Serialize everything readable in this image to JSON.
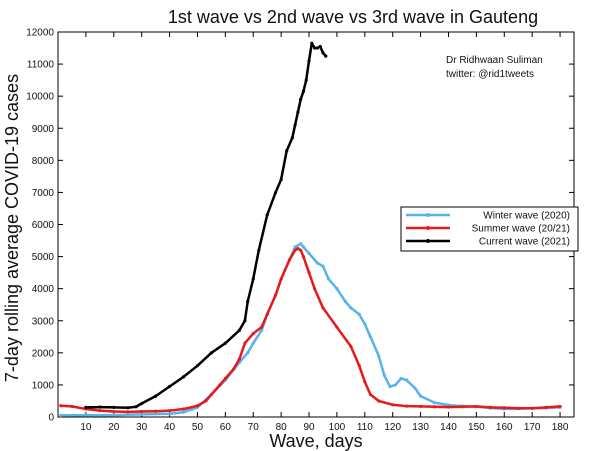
{
  "chart_data": {
    "type": "line",
    "title": "1st wave vs 2nd wave vs 3rd wave in Gauteng",
    "xlabel": "Wave, days",
    "ylabel": "7-day rolling average COVID-19 cases",
    "xlim": [
      0,
      185
    ],
    "ylim": [
      0,
      12000
    ],
    "xticks": [
      10,
      20,
      30,
      40,
      50,
      60,
      70,
      80,
      90,
      100,
      110,
      120,
      130,
      140,
      150,
      160,
      170,
      180
    ],
    "yticks": [
      0,
      1000,
      2000,
      3000,
      4000,
      5000,
      6000,
      7000,
      8000,
      9000,
      10000,
      11000,
      12000
    ],
    "annotation": {
      "line1": "Dr Ridhwaan Suliman",
      "line2": "twitter: @rid1tweets"
    },
    "legend_position": "right",
    "series": [
      {
        "name": "Winter wave (2020)",
        "color": "#56b4e9",
        "x": [
          1,
          10,
          20,
          30,
          40,
          45,
          50,
          55,
          60,
          65,
          68,
          70,
          73,
          75,
          78,
          80,
          83,
          85,
          87,
          88,
          90,
          93,
          95,
          97,
          100,
          103,
          105,
          108,
          110,
          112,
          115,
          117,
          119,
          121,
          123,
          125,
          128,
          130,
          135,
          140,
          145,
          150,
          155,
          160,
          165,
          170,
          175,
          180
        ],
        "y": [
          50,
          60,
          60,
          80,
          100,
          150,
          300,
          700,
          1150,
          1700,
          2000,
          2300,
          2700,
          3200,
          3800,
          4300,
          4900,
          5300,
          5400,
          5300,
          5100,
          4800,
          4700,
          4300,
          4000,
          3600,
          3400,
          3200,
          2900,
          2500,
          1900,
          1300,
          950,
          1000,
          1200,
          1150,
          900,
          650,
          450,
          370,
          340,
          320,
          280,
          250,
          260,
          270,
          280,
          300
        ]
      },
      {
        "name": "Summer wave (20/21)",
        "color": "#e8191b",
        "x": [
          1,
          5,
          10,
          15,
          20,
          25,
          30,
          35,
          40,
          45,
          50,
          53,
          55,
          58,
          60,
          63,
          65,
          67,
          70,
          73,
          75,
          78,
          80,
          83,
          85,
          86,
          87,
          88,
          90,
          92,
          95,
          100,
          105,
          108,
          110,
          112,
          115,
          120,
          125,
          130,
          135,
          140,
          145,
          150,
          155,
          160,
          165,
          170,
          175,
          180
        ],
        "y": [
          350,
          330,
          250,
          200,
          170,
          160,
          170,
          180,
          200,
          250,
          350,
          500,
          700,
          1000,
          1200,
          1500,
          1800,
          2300,
          2600,
          2800,
          3200,
          3800,
          4300,
          4900,
          5200,
          5250,
          5200,
          5000,
          4500,
          4000,
          3400,
          2800,
          2200,
          1600,
          1100,
          700,
          500,
          380,
          340,
          330,
          320,
          310,
          320,
          330,
          300,
          290,
          270,
          270,
          300,
          330
        ]
      },
      {
        "name": "Current wave (2021)",
        "color": "#000000",
        "x": [
          10,
          15,
          20,
          25,
          28,
          30,
          35,
          40,
          45,
          50,
          55,
          60,
          65,
          67,
          68,
          70,
          72,
          75,
          78,
          80,
          82,
          84,
          85,
          86,
          87,
          88,
          89,
          90,
          91,
          92,
          93,
          94,
          95,
          96
        ],
        "y": [
          300,
          310,
          300,
          290,
          320,
          420,
          650,
          950,
          1250,
          1600,
          2000,
          2300,
          2700,
          3000,
          3600,
          4300,
          5200,
          6300,
          7000,
          7400,
          8300,
          8700,
          9100,
          9500,
          9900,
          10150,
          10500,
          11100,
          11650,
          11500,
          11500,
          11550,
          11350,
          11250
        ]
      }
    ]
  }
}
